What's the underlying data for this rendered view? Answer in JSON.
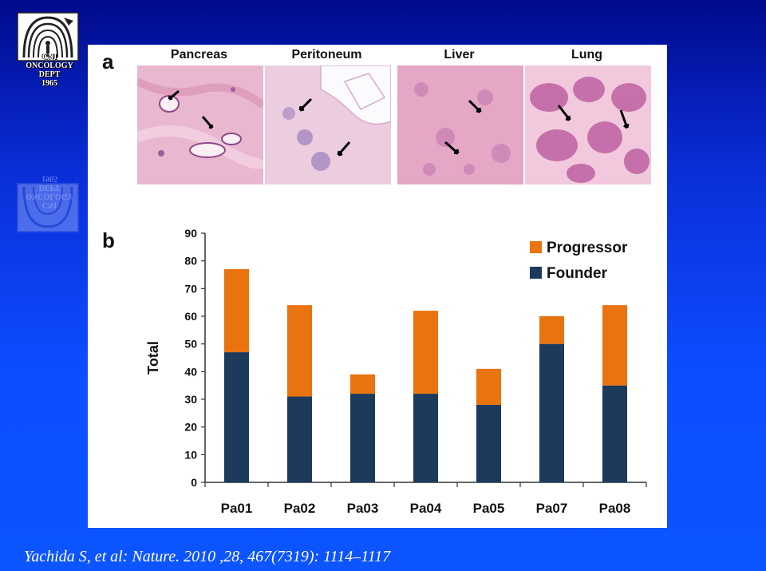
{
  "logo": {
    "icon": "institution-logo-icon",
    "text": "CNI\nONCOLOGY DEPT\n1965"
  },
  "panel_a": {
    "label": "a",
    "tissues": [
      {
        "name": "Pancreas",
        "image": "pancreas-histology"
      },
      {
        "name": "Peritoneum",
        "image": "peritoneum-histology"
      },
      {
        "name": "Liver",
        "image": "liver-histology"
      },
      {
        "name": "Lung",
        "image": "lung-histology"
      }
    ]
  },
  "panel_b": {
    "label": "b"
  },
  "colors": {
    "progressor": "#e8730f",
    "founder": "#1b3a5c"
  },
  "chart_data": {
    "type": "bar",
    "stacked": true,
    "categories": [
      "Pa01",
      "Pa02",
      "Pa03",
      "Pa04",
      "Pa05",
      "Pa07",
      "Pa08"
    ],
    "series": [
      {
        "name": "Founder",
        "values": [
          47,
          31,
          32,
          32,
          28,
          50,
          35
        ]
      },
      {
        "name": "Progressor",
        "values": [
          30,
          33,
          7,
          30,
          13,
          10,
          29
        ]
      }
    ],
    "ylabel": "Total",
    "ylim": [
      0,
      90
    ],
    "yticks": [
      0,
      10,
      20,
      30,
      40,
      50,
      60,
      70,
      80,
      90
    ],
    "grid": false,
    "legend": "top-right",
    "legend_order": [
      "Progressor",
      "Founder"
    ]
  },
  "citation": "Yachida S, et al: Nature. 2010 ,28, 467(7319): 1114–1117"
}
